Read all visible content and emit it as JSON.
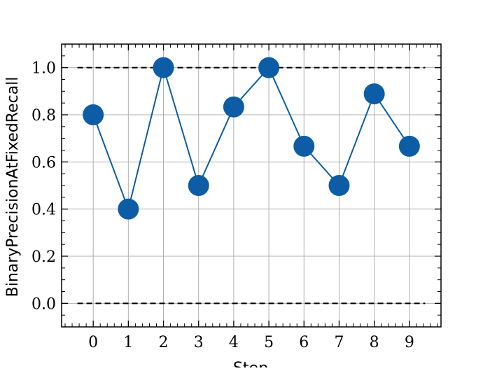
{
  "chart_data": {
    "type": "line",
    "title": "",
    "xlabel": "Step",
    "ylabel": "BinaryPrecisionAtFixedRecall",
    "x": [
      0,
      1,
      2,
      3,
      4,
      5,
      6,
      7,
      8,
      9
    ],
    "series": [
      {
        "values": [
          0.8,
          0.4,
          1.0,
          0.5,
          0.8333,
          1.0,
          0.6667,
          0.5,
          0.8889,
          0.6667
        ],
        "color": "#0C5DA5",
        "marker": "circle"
      }
    ],
    "reference_lines": [
      {
        "y": 1.0,
        "style": "dashed",
        "color": "#000000"
      },
      {
        "y": 0.0,
        "style": "dashed",
        "color": "#000000"
      }
    ],
    "xlim": [
      -0.9,
      9.9
    ],
    "ylim": [
      -0.1,
      1.1
    ],
    "xticks": [
      "0",
      "1",
      "2",
      "3",
      "4",
      "5",
      "6",
      "7",
      "8",
      "9"
    ],
    "yticks": [
      "0.0",
      "0.2",
      "0.4",
      "0.6",
      "0.8",
      "1.0"
    ],
    "grid": true,
    "legend": "none"
  }
}
